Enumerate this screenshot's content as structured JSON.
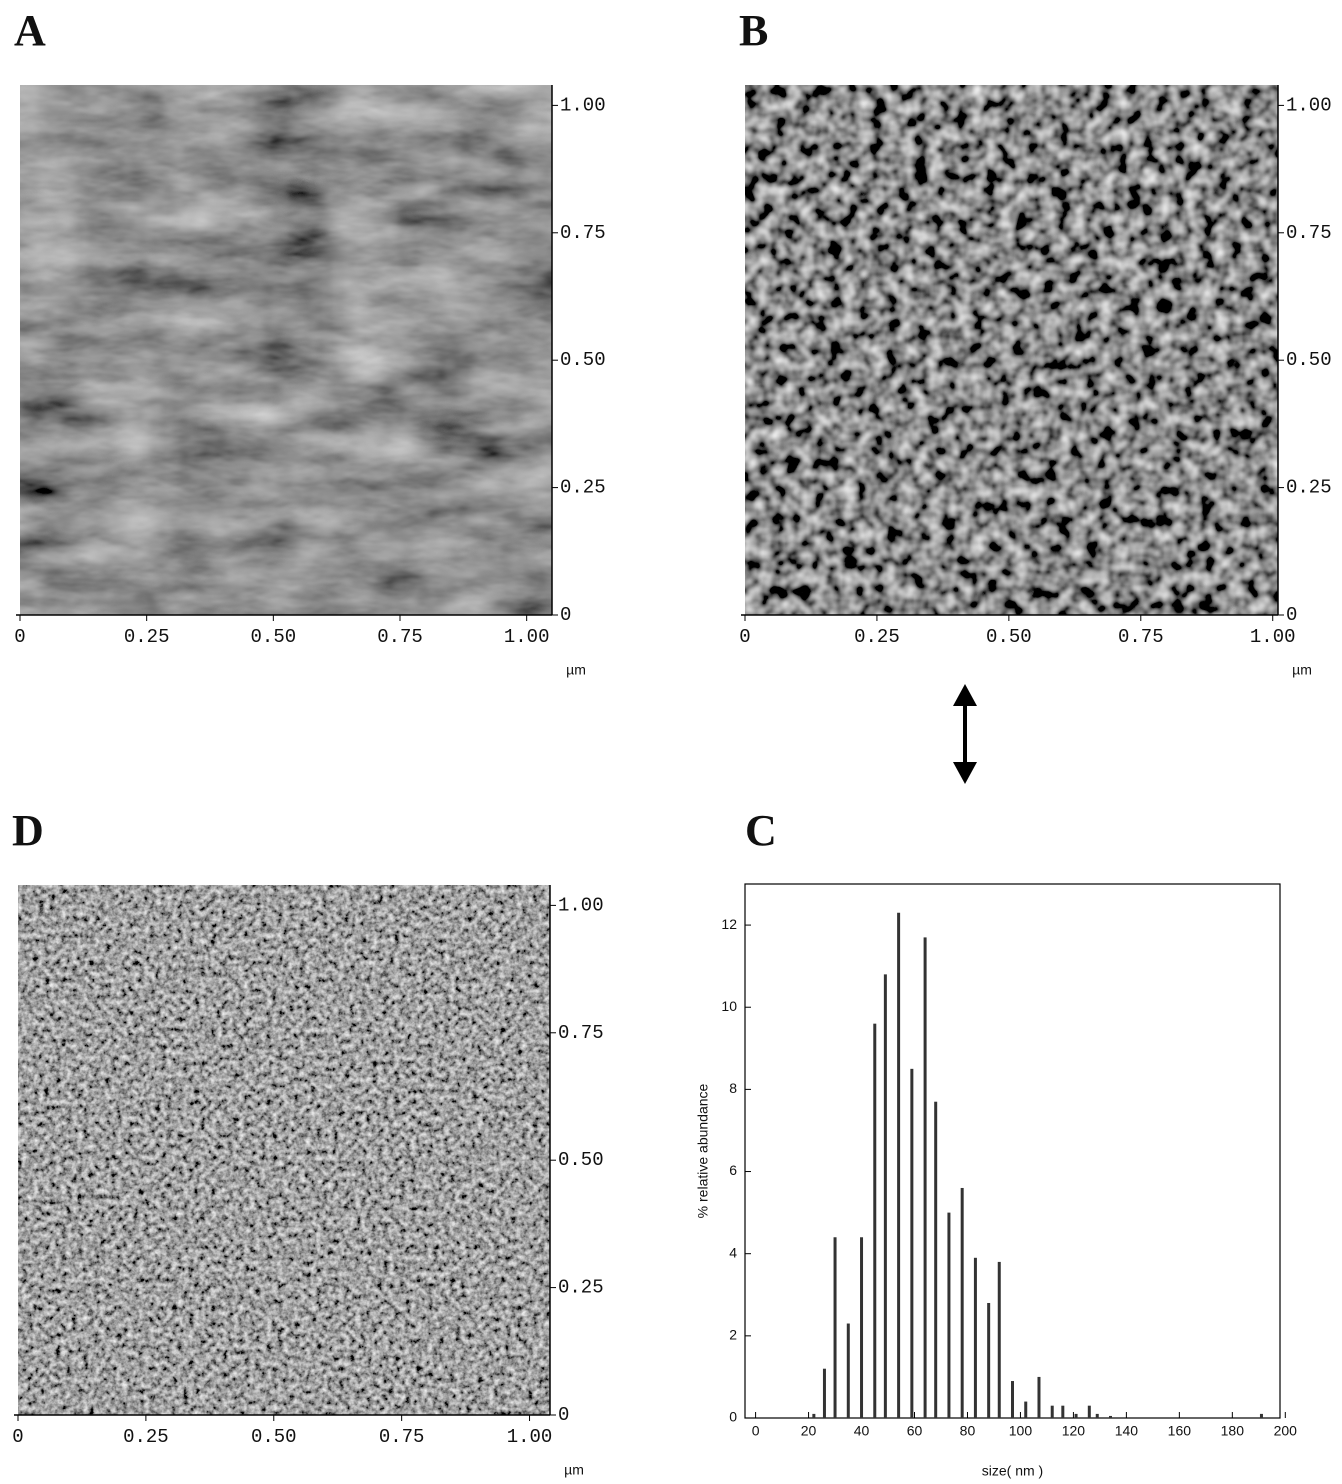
{
  "images": [
    {
      "letter": "A",
      "unit": "µm",
      "xlim": [
        0,
        1.05
      ],
      "ylim": [
        0,
        1.04
      ],
      "xticks": [
        0,
        0.25,
        {
          "value": 0.5,
          "label": "0.50"
        },
        0.75,
        {
          "value": 1,
          "label": "1.00"
        }
      ],
      "yticks": [
        0,
        0.25,
        {
          "value": 0.5,
          "label": "0.50"
        },
        0.75,
        {
          "value": 1,
          "label": "1.00"
        }
      ]
    },
    {
      "letter": "B",
      "unit": "µm",
      "xlim": [
        0,
        1.01
      ],
      "ylim": [
        0,
        1.04
      ],
      "xticks": [
        0,
        0.25,
        {
          "value": 0.5,
          "label": "0.50"
        },
        0.75,
        {
          "value": 1,
          "label": "1.00"
        }
      ],
      "yticks": [
        0,
        0.25,
        {
          "value": 0.5,
          "label": "0.50"
        },
        0.75,
        {
          "value": 1,
          "label": "1.00"
        }
      ]
    },
    {
      "letter": "D",
      "unit": "µm",
      "xlim": [
        0,
        1.04
      ],
      "ylim": [
        0,
        1.04
      ],
      "xticks": [
        0,
        0.25,
        {
          "value": 0.5,
          "label": "0.50"
        },
        0.75,
        {
          "value": 1,
          "label": "1.00"
        }
      ],
      "yticks": [
        0,
        0.25,
        {
          "value": 0.5,
          "label": "0.50"
        },
        0.75,
        {
          "value": 1,
          "label": "1.00"
        }
      ]
    }
  ],
  "chart_data": {
    "type": "bar",
    "letter": "C",
    "color": "#333333",
    "x_label": "size( nm )",
    "y_label": "% relative abundance",
    "x": [
      22,
      26,
      30,
      35,
      40,
      45,
      49,
      54,
      59,
      64,
      68,
      73,
      78,
      83,
      88,
      92,
      97,
      102,
      107,
      112,
      116,
      121,
      126,
      129,
      134,
      191
    ],
    "values": [
      0.1,
      1.2,
      4.4,
      2.3,
      4.4,
      9.6,
      10.8,
      12.3,
      8.5,
      11.7,
      7.7,
      5.0,
      5.6,
      3.9,
      2.8,
      3.8,
      0.9,
      0.4,
      1.0,
      0.3,
      0.3,
      0.1,
      0.3,
      0.1,
      0.05,
      0.1
    ],
    "xlim": [
      -4,
      198
    ],
    "ylim": [
      0,
      13
    ],
    "xticks": [
      0,
      20,
      40,
      60,
      80,
      100,
      120,
      140,
      160,
      180,
      200
    ],
    "yticks": [
      0,
      2,
      4,
      6,
      8,
      10,
      12
    ]
  }
}
